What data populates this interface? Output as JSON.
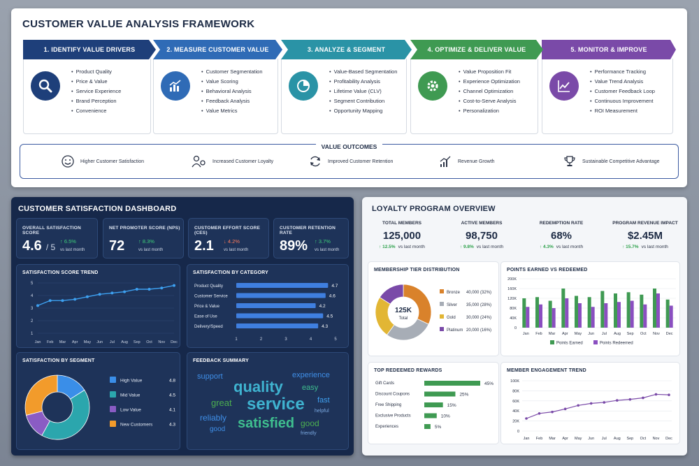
{
  "framework": {
    "title": "CUSTOMER VALUE ANALYSIS FRAMEWORK",
    "steps": [
      {
        "label": "1. IDENTIFY VALUE DRIVERS",
        "color": "#1e3f7a",
        "icon": "search-icon",
        "items": [
          "Product Quality",
          "Price & Value",
          "Service Experience",
          "Brand Perception",
          "Convenience"
        ]
      },
      {
        "label": "2. MEASURE CUSTOMER VALUE",
        "color": "#2f6bb6",
        "icon": "bar-chart-icon",
        "items": [
          "Customer Segmentation",
          "Value Scoring",
          "Behavioral Analysis",
          "Feedback Analysis",
          "Value Metrics"
        ]
      },
      {
        "label": "3. ANALYZE & SEGMENT",
        "color": "#2a93a6",
        "icon": "pie-chart-icon",
        "items": [
          "Value-Based Segmentation",
          "Profitability Analysis",
          "Lifetime Value (CLV)",
          "Segment Contribution",
          "Opportunity Mapping"
        ]
      },
      {
        "label": "4. OPTIMIZE & DELIVER VALUE",
        "color": "#3f9a52",
        "icon": "gear-icon",
        "items": [
          "Value Proposition Fit",
          "Experience Optimization",
          "Channel Optimization",
          "Cost-to-Serve Analysis",
          "Personalization"
        ]
      },
      {
        "label": "5. MONITOR & IMPROVE",
        "color": "#7a4aa8",
        "icon": "line-chart-icon",
        "items": [
          "Performance Tracking",
          "Value Trend Analysis",
          "Customer Feedback Loop",
          "Continuous Improvement",
          "ROI Measurement"
        ]
      }
    ],
    "outcomes_title": "VALUE OUTCOMES",
    "outcomes": [
      {
        "label": "Higher Customer Satisfaction",
        "icon": "smiley-icon"
      },
      {
        "label": "Increased Customer Loyalty",
        "icon": "people-icon"
      },
      {
        "label": "Improved Customer Retention",
        "icon": "refresh-icon"
      },
      {
        "label": "Revenue Growth",
        "icon": "growth-chart-icon"
      },
      {
        "label": "Sustainable Competitive Advantage",
        "icon": "trophy-icon"
      }
    ]
  },
  "satisfaction": {
    "title": "CUSTOMER SATISFACTION DASHBOARD",
    "kpis": [
      {
        "label": "OVERALL SATISFACTION SCORE",
        "value": "4.6",
        "suffix": "/ 5",
        "delta": "↑ 6.5%",
        "vs": "vs last month",
        "up": true
      },
      {
        "label": "NET PROMOTER SCORE (NPS)",
        "value": "72",
        "suffix": "",
        "delta": "↑ 8.3%",
        "vs": "vs last month",
        "up": true
      },
      {
        "label": "CUSTOMER EFFORT SCORE (CES)",
        "value": "2.1",
        "suffix": "",
        "delta": "↓ 4.2%",
        "vs": "vs last month",
        "up": false
      },
      {
        "label": "CUSTOMER RETENTION RATE",
        "value": "89%",
        "suffix": "",
        "delta": "↑ 3.7%",
        "vs": "vs last month",
        "up": true
      }
    ],
    "trend_title": "SATISFACTION SCORE TREND",
    "category_title": "SATISFACTION BY CATEGORY",
    "segment_title": "SATISFACTION BY SEGMENT",
    "feedback_title": "FEEDBACK SUMMARY",
    "words": [
      "support",
      "experience",
      "quality",
      "easy",
      "great",
      "service",
      "fast",
      "reliably",
      "helpful",
      "satisfied",
      "good",
      "good",
      "friendly"
    ],
    "colors": {
      "line": "#3da0f0",
      "bar": "#3f7fe0",
      "up": "#3fd07a",
      "down": "#ff7b5a"
    }
  },
  "loyalty": {
    "title": "LOYALTY PROGRAM OVERVIEW",
    "kpis": [
      {
        "label": "TOTAL MEMBERS",
        "value": "125,000",
        "delta": "↑ 12.5%",
        "vs": "vs last month"
      },
      {
        "label": "ACTIVE MEMBERS",
        "value": "98,750",
        "delta": "↑ 9.8%",
        "vs": "vs last month"
      },
      {
        "label": "REDEMPTION RATE",
        "value": "68%",
        "delta": "↑ 4.3%",
        "vs": "vs last month"
      },
      {
        "label": "PROGRAM REVENUE IMPACT",
        "value": "$2.45M",
        "delta": "↑ 15.7%",
        "vs": "vs last month"
      }
    ],
    "tier_title": "MEMBERSHIP TIER DISTRIBUTION",
    "points_title": "POINTS EARNED VS REDEEMED",
    "rewards_title": "TOP REDEEMED REWARDS",
    "engagement_title": "MEMBER ENGAGEMENT TREND",
    "tier_center_value": "125K",
    "tier_center_label": "Total",
    "colors": {
      "bronze": "#d9822b",
      "silver": "#a7adb6",
      "gold": "#e2b634",
      "platinum": "#7a4aa8",
      "earned": "#3f9a52",
      "redeemed": "#8a4fc0",
      "reward": "#3f9a52",
      "engage": "#7a4aa8"
    }
  },
  "chart_data": [
    {
      "type": "line",
      "title": "SATISFACTION SCORE TREND",
      "categories": [
        "Jan",
        "Feb",
        "Mar",
        "Apr",
        "May",
        "Jun",
        "Jul",
        "Aug",
        "Sep",
        "Oct",
        "Nov",
        "Dec"
      ],
      "values": [
        3.2,
        3.6,
        3.6,
        3.7,
        3.9,
        4.1,
        4.2,
        4.3,
        4.5,
        4.5,
        4.6,
        4.8
      ],
      "ylim": [
        1,
        5
      ],
      "yticks": [
        1,
        2,
        3,
        4,
        5
      ]
    },
    {
      "type": "bar",
      "orientation": "horizontal",
      "title": "SATISFACTION BY CATEGORY",
      "categories": [
        "Product Quality",
        "Customer Service",
        "Price & Value",
        "Ease of Use",
        "Delivery/Speed"
      ],
      "values": [
        4.7,
        4.6,
        4.2,
        4.5,
        4.3
      ],
      "xlim": [
        1,
        5
      ],
      "xticks": [
        1,
        2,
        3,
        4,
        5
      ]
    },
    {
      "type": "pie",
      "title": "SATISFACTION BY SEGMENT",
      "categories": [
        "High Value",
        "Mid Value",
        "Low Value",
        "New Customers"
      ],
      "values": [
        4.8,
        4.5,
        4.1,
        4.3
      ],
      "shares": [
        0.16,
        0.42,
        0.13,
        0.29
      ],
      "colors": [
        "#3a8ee8",
        "#2ba6ad",
        "#8a5cc4",
        "#f29b2b"
      ]
    },
    {
      "type": "pie",
      "title": "MEMBERSHIP TIER DISTRIBUTION",
      "categories": [
        "Bronze",
        "Silver",
        "Gold",
        "Platinum"
      ],
      "values": [
        40000,
        35000,
        30000,
        20000
      ],
      "labels": [
        "40,000 (32%)",
        "35,000 (28%)",
        "30,000 (24%)",
        "20,000 (16%)"
      ]
    },
    {
      "type": "bar",
      "title": "POINTS EARNED VS REDEEMED",
      "categories": [
        "Jan",
        "Feb",
        "Mar",
        "Apr",
        "May",
        "Jun",
        "Jul",
        "Aug",
        "Sep",
        "Oct",
        "Nov",
        "Dec"
      ],
      "series": [
        {
          "name": "Points Earned",
          "values": [
            120,
            125,
            110,
            160,
            130,
            125,
            150,
            140,
            145,
            135,
            160,
            115
          ]
        },
        {
          "name": "Points Redeemed",
          "values": [
            85,
            95,
            80,
            120,
            100,
            85,
            100,
            105,
            110,
            95,
            140,
            90
          ]
        }
      ],
      "ylim": [
        0,
        200
      ],
      "yticks": [
        "0",
        "40K",
        "80K",
        "120K",
        "160K",
        "200K"
      ]
    },
    {
      "type": "bar",
      "orientation": "horizontal",
      "title": "TOP REDEEMED REWARDS",
      "categories": [
        "Gift Cards",
        "Discount Coupons",
        "Free Shipping",
        "Exclusive Products",
        "Experiences"
      ],
      "values": [
        45,
        25,
        15,
        10,
        5
      ],
      "labels": [
        "45%",
        "25%",
        "15%",
        "10%",
        "5%"
      ]
    },
    {
      "type": "line",
      "title": "MEMBER ENGAGEMENT TREND",
      "categories": [
        "Jan",
        "Feb",
        "Mar",
        "Apr",
        "May",
        "Jun",
        "Jul",
        "Aug",
        "Sep",
        "Oct",
        "Nov",
        "Dec"
      ],
      "values": [
        25,
        35,
        38,
        44,
        51,
        55,
        57,
        61,
        63,
        66,
        73,
        72
      ],
      "ylim": [
        0,
        100
      ],
      "yticks": [
        "0",
        "20K",
        "40K",
        "60K",
        "80K",
        "100K"
      ]
    }
  ]
}
